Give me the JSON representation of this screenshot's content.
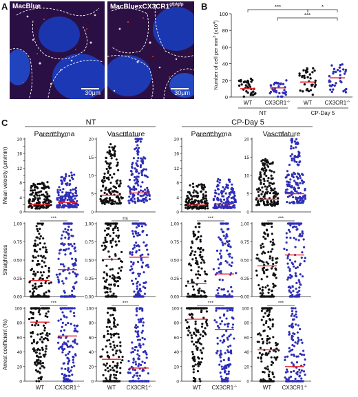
{
  "panel_labels": {
    "a": "A",
    "b": "B",
    "c": "C"
  },
  "micrographs": [
    {
      "title": "MacBlue",
      "scale": "30μm"
    },
    {
      "title": "MacBluexCX3CR1",
      "title_sup": "gfp/gfp",
      "scale": "30μm"
    }
  ],
  "panelB": {
    "ylabel": "Number of cell per mm",
    "ylabel_sup": "3",
    "ylabel_suffix": " (x10",
    "ylabel_sup2": "4",
    "ylabel_close": ")",
    "yticks": [
      "0",
      "20",
      "40",
      "60",
      "80",
      "100"
    ],
    "xticks": [
      {
        "text": "WT",
        "sup": ""
      },
      {
        "text": "CX3CR1",
        "sup": "-/-"
      },
      {
        "text": "WT",
        "sup": ""
      },
      {
        "text": "CX3CR1",
        "sup": "-/-"
      }
    ],
    "groups": [
      "NT",
      "CP-Day 5"
    ],
    "sig": [
      "***",
      "*",
      "***"
    ]
  },
  "panelC": {
    "conditions": [
      "NT",
      "CP-Day 5"
    ],
    "columns": [
      "Parenchyma",
      "Vasculature",
      "Parenchyma",
      "Vasculature"
    ],
    "row_labels": [
      "Mean velocity (μm/min)",
      "Straightness",
      "Arrest coefficient (%)"
    ],
    "row_ticks": [
      [
        "0",
        "2",
        "4",
        "6",
        "8",
        "10",
        "12",
        "14",
        "16",
        "18",
        "20"
      ],
      [
        "0.00",
        "0.25",
        "0.50",
        "0.75",
        "1.00"
      ],
      [
        "0",
        "20",
        "40",
        "60",
        "80",
        "100"
      ]
    ],
    "vascular_ticks_row1": [
      "0",
      "5",
      "10",
      "15",
      "20"
    ],
    "xlabel_wt": "WT",
    "xlabel_ko": "CX3CR1",
    "xlabel_ko_sup": "-/-",
    "sig": [
      [
        "***",
        "***",
        "***",
        "***"
      ],
      [
        "***",
        "ns",
        "***",
        "***"
      ],
      [
        "***",
        "***",
        "***",
        "***"
      ]
    ]
  },
  "chart_data": [
    {
      "type": "scatter",
      "title": "",
      "ylabel": "Number of cell per mm3 (x10^4)",
      "ylim": [
        0,
        100
      ],
      "categories": [
        "NT WT",
        "NT CX3CR1-/-",
        "CP-Day 5 WT",
        "CP-Day 5 CX3CR1-/-"
      ],
      "series": [
        {
          "values": [
            10,
            11,
            18,
            23
          ]
        }
      ],
      "significance": [
        [
          "NT WT",
          "CP-Day 5 WT",
          "***"
        ],
        [
          "CP-Day 5 WT",
          "CP-Day 5 CX3CR1-/-",
          "*"
        ],
        [
          "NT CX3CR1-/-",
          "CP-Day 5 CX3CR1-/-",
          "***"
        ]
      ]
    },
    {
      "type": "scatter",
      "categories": [
        "WT",
        "CX3CR1-/-"
      ],
      "subplots": [
        {
          "row": "Mean velocity (μm/min)",
          "condition": "NT",
          "compartment": "Parenchyma",
          "ylim": [
            0,
            20
          ],
          "values": [
            2.0,
            2.6
          ],
          "sig": "***"
        },
        {
          "row": "Mean velocity (μm/min)",
          "condition": "NT",
          "compartment": "Vasculature",
          "ylim": [
            0,
            20
          ],
          "values": [
            4.6,
            5.2
          ],
          "sig": "***"
        },
        {
          "row": "Mean velocity (μm/min)",
          "condition": "CP-Day 5",
          "compartment": "Parenchyma",
          "ylim": [
            0,
            20
          ],
          "values": [
            1.9,
            2.2
          ],
          "sig": "***"
        },
        {
          "row": "Mean velocity (μm/min)",
          "condition": "CP-Day 5",
          "compartment": "Vasculature",
          "ylim": [
            0,
            20
          ],
          "values": [
            3.5,
            5.0
          ],
          "sig": "***"
        },
        {
          "row": "Straightness",
          "condition": "NT",
          "compartment": "Parenchyma",
          "ylim": [
            0,
            1
          ],
          "values": [
            0.22,
            0.37
          ],
          "sig": "***"
        },
        {
          "row": "Straightness",
          "condition": "NT",
          "compartment": "Vasculature",
          "ylim": [
            0,
            1
          ],
          "values": [
            0.51,
            0.54
          ],
          "sig": "ns"
        },
        {
          "row": "Straightness",
          "condition": "CP-Day 5",
          "compartment": "Parenchyma",
          "ylim": [
            0,
            1
          ],
          "values": [
            0.18,
            0.31
          ],
          "sig": "***"
        },
        {
          "row": "Straightness",
          "condition": "CP-Day 5",
          "compartment": "Vasculature",
          "ylim": [
            0,
            1
          ],
          "values": [
            0.42,
            0.57
          ],
          "sig": "***"
        },
        {
          "row": "Arrest coefficient (%)",
          "condition": "NT",
          "compartment": "Parenchyma",
          "ylim": [
            0,
            100
          ],
          "values": [
            81,
            62
          ],
          "sig": "***"
        },
        {
          "row": "Arrest coefficient (%)",
          "condition": "NT",
          "compartment": "Vasculature",
          "ylim": [
            0,
            100
          ],
          "values": [
            30,
            18
          ],
          "sig": "***"
        },
        {
          "row": "Arrest coefficient (%)",
          "condition": "CP-Day 5",
          "compartment": "Parenchyma",
          "ylim": [
            0,
            100
          ],
          "values": [
            85,
            71
          ],
          "sig": "***"
        },
        {
          "row": "Arrest coefficient (%)",
          "condition": "CP-Day 5",
          "compartment": "Vasculature",
          "ylim": [
            0,
            100
          ],
          "values": [
            43,
            20
          ],
          "sig": "***"
        }
      ]
    }
  ],
  "colors": {
    "wt": "#111111",
    "ko": "#2e2eb8",
    "median": "#e8202a",
    "axis": "#222222"
  }
}
